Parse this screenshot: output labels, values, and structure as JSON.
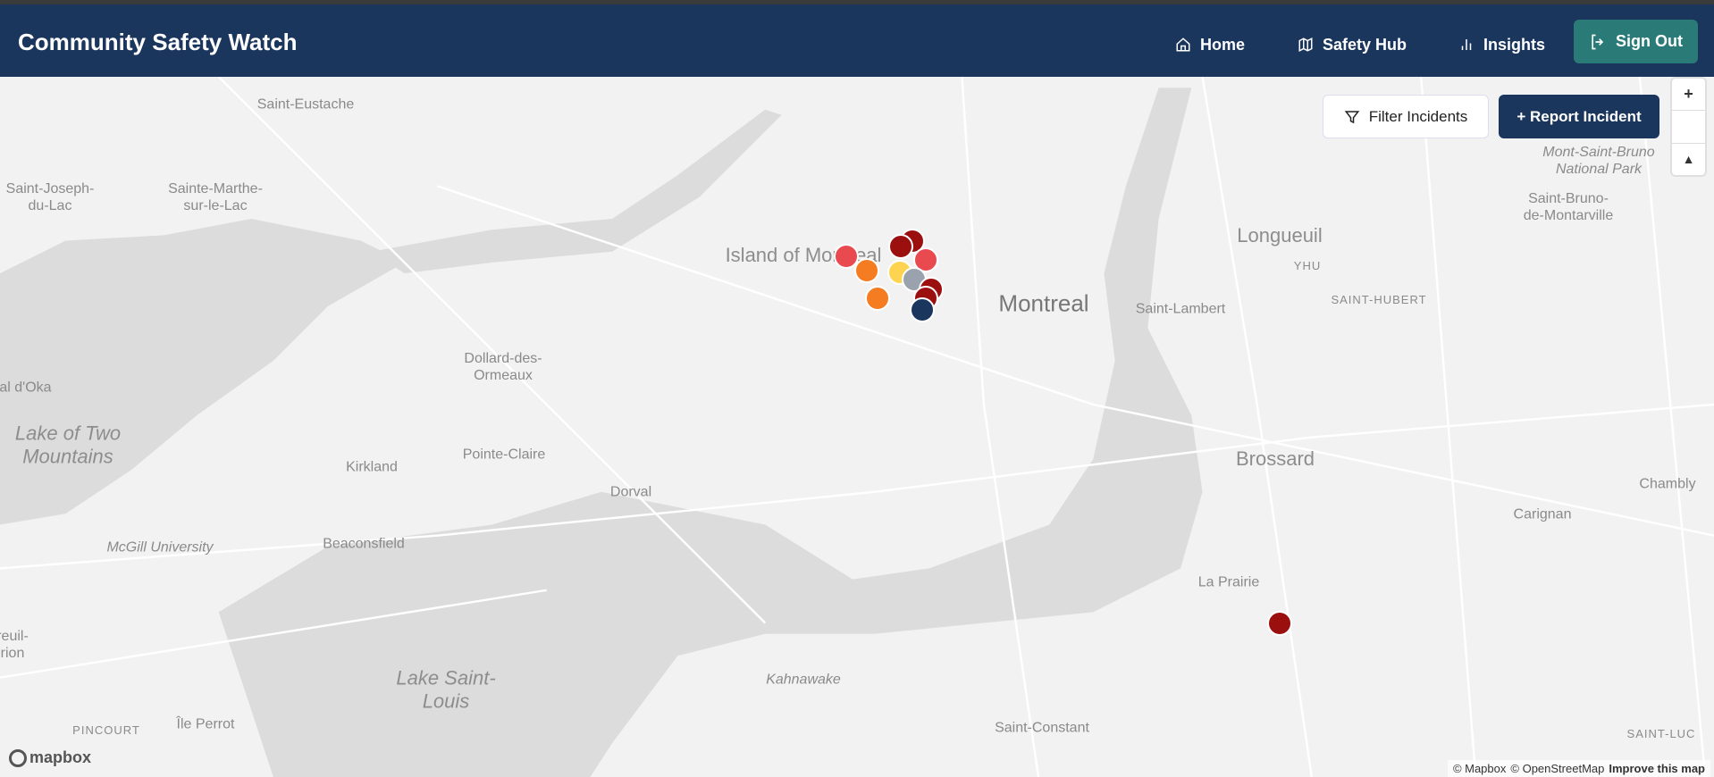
{
  "header": {
    "title": "Community Safety Watch",
    "nav": [
      {
        "label": "Home",
        "icon": "home-icon"
      },
      {
        "label": "Safety Hub",
        "icon": "map-icon"
      },
      {
        "label": "Insights",
        "icon": "bar-chart-icon"
      }
    ],
    "sign_out": "Sign Out"
  },
  "map_controls": {
    "filter": "Filter Incidents",
    "report": "+ Report Incident",
    "zoom_in": "+",
    "compass": "▲"
  },
  "map_labels": [
    "Saint-Eustache",
    "Saint-Joseph-du-Lac",
    "Sainte-Marthe-sur-le-Lac",
    "Island of Montreal",
    "Montreal",
    "Longueuil",
    "YHU",
    "SAINT-HUBERT",
    "Saint-Lambert",
    "Mont-Saint-Bruno National Park",
    "Saint-Bruno-de-Montarville",
    "Dollard-des-Ormeaux",
    "Lake of Two Mountains",
    "Pointe-Claire",
    "Kirkland",
    "Dorval",
    "Brossard",
    "Chambly",
    "Carignan",
    "McGill University",
    "Beaconsfield",
    "La Prairie",
    "Lake Saint-Louis",
    "Kahnawake",
    "PINCOURT",
    "Île Perrot",
    "Saint-Constant",
    "SAINT-LUC",
    "nal d'Oka",
    "reuil-rion"
  ],
  "markers": [
    {
      "color": "#e84a4f"
    },
    {
      "color": "#f57c20"
    },
    {
      "color": "#f57c20"
    },
    {
      "color": "#9b0f0f"
    },
    {
      "color": "#9b0f0f"
    },
    {
      "color": "#e84a4f"
    },
    {
      "color": "#fdd34f"
    },
    {
      "color": "#9aa3ad"
    },
    {
      "color": "#9b0f0f"
    },
    {
      "color": "#9b0f0f"
    },
    {
      "color": "#1b365d"
    },
    {
      "color": "#9b0f0f"
    }
  ],
  "footer": {
    "logo": "mapbox",
    "attribution_1": "© Mapbox",
    "attribution_2": "© OpenStreetMap",
    "improve": "Improve this map"
  }
}
